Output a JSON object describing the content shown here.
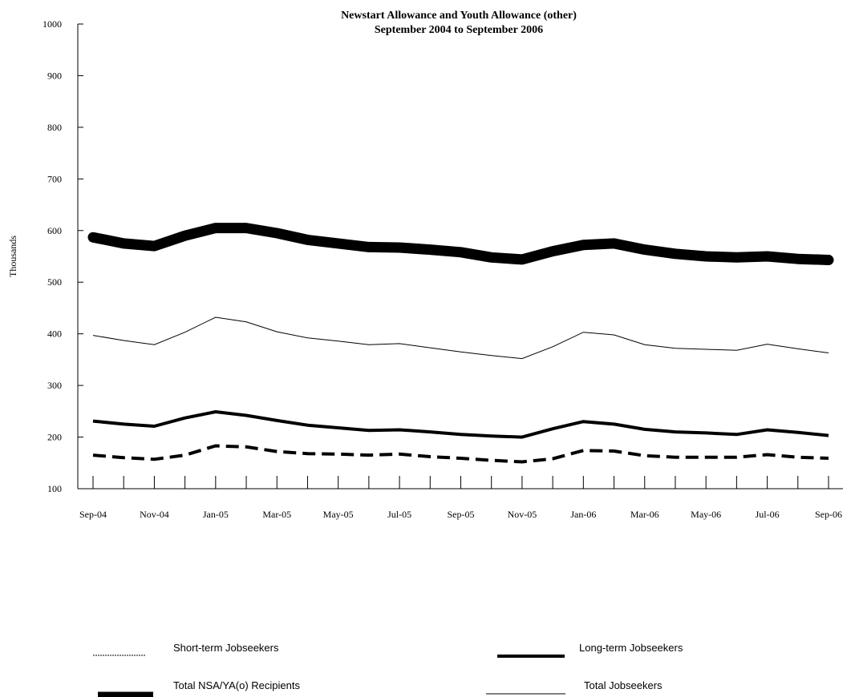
{
  "chart_data": {
    "type": "line",
    "title": "Newstart Allowance and Youth Allowance (other)",
    "subtitle": "September 2004 to September 2006",
    "ylabel": "Thousands",
    "xlabel": "",
    "ylim": [
      100,
      1000
    ],
    "yticks": [
      100,
      200,
      300,
      400,
      500,
      600,
      700,
      800,
      900,
      1000
    ],
    "x": [
      "Sep-04",
      "Oct-04",
      "Nov-04",
      "Dec-04",
      "Jan-05",
      "Feb-05",
      "Mar-05",
      "Apr-05",
      "May-05",
      "Jun-05",
      "Jul-05",
      "Aug-05",
      "Sep-05",
      "Oct-05",
      "Nov-05",
      "Dec-05",
      "Jan-06",
      "Feb-06",
      "Mar-06",
      "Apr-06",
      "May-06",
      "Jun-06",
      "Jul-06",
      "Aug-06",
      "Sep-06"
    ],
    "xtick_labels": [
      "Sep-04",
      "",
      "Nov-04",
      "",
      "Jan-05",
      "",
      "Mar-05",
      "",
      "May-05",
      "",
      "Jul-05",
      "",
      "Sep-05",
      "",
      "Nov-05",
      "",
      "Jan-06",
      "",
      "Mar-06",
      "",
      "May-06",
      "",
      "Jul-06",
      "",
      "Sep-06"
    ],
    "grid": false,
    "legend_position": "bottom",
    "series": [
      {
        "name": "Total NSA/YA(o) Recipients",
        "style": "very-thick-solid",
        "values": [
          587,
          575,
          570,
          590,
          605,
          605,
          595,
          582,
          575,
          568,
          567,
          563,
          558,
          548,
          544,
          560,
          572,
          575,
          563,
          555,
          550,
          548,
          550,
          545,
          543
        ]
      },
      {
        "name": "Total Jobseekers",
        "style": "thin-solid",
        "values": [
          397,
          387,
          379,
          403,
          432,
          423,
          404,
          392,
          386,
          379,
          381,
          373,
          365,
          358,
          352,
          375,
          403,
          398,
          379,
          372,
          370,
          368,
          380,
          371,
          363
        ]
      },
      {
        "name": "Long-term Jobseekers",
        "style": "thick-solid",
        "values": [
          231,
          225,
          221,
          237,
          249,
          242,
          232,
          223,
          218,
          213,
          214,
          210,
          205,
          202,
          200,
          216,
          230,
          225,
          215,
          210,
          208,
          205,
          214,
          209,
          203
        ]
      },
      {
        "name": "Short-term Jobseekers",
        "style": "thick-dashed",
        "values": [
          165,
          160,
          157,
          165,
          183,
          181,
          172,
          168,
          167,
          165,
          167,
          162,
          159,
          155,
          152,
          158,
          174,
          173,
          164,
          161,
          161,
          161,
          166,
          161,
          159
        ]
      }
    ]
  }
}
